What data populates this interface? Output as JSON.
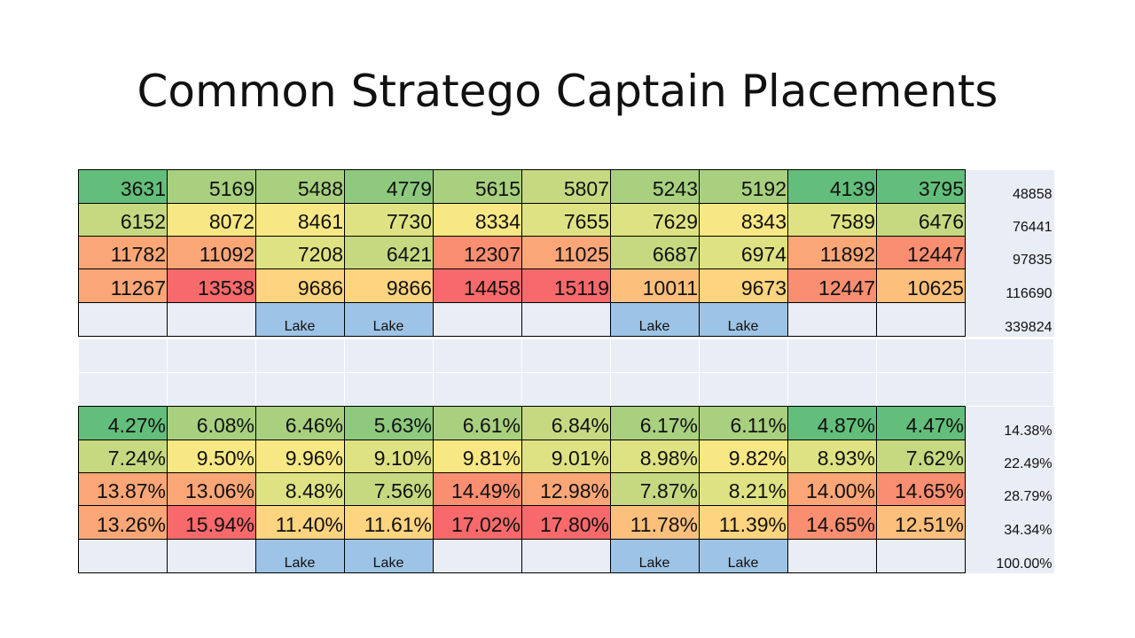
{
  "title": "Common Stratego Captain Placements",
  "lake_label": "Lake",
  "colors": {
    "c1": "#63be7b",
    "c2": "#8ec97e",
    "c3": "#a8d07f",
    "c4": "#c6d981",
    "c5": "#dee283",
    "c6": "#f7e885",
    "c7": "#fdd47f",
    "c8": "#fcc07c",
    "c9": "#fba677",
    "c10": "#f98e71",
    "c11": "#f8696b",
    "lake": "#9dc3e6",
    "empty": "#e9edf5"
  },
  "counts": {
    "rows": [
      [
        "3631",
        "5169",
        "5488",
        "4779",
        "5615",
        "5807",
        "5243",
        "5192",
        "4139",
        "3795"
      ],
      [
        "6152",
        "8072",
        "8461",
        "7730",
        "8334",
        "7655",
        "7629",
        "8343",
        "7589",
        "6476"
      ],
      [
        "11782",
        "11092",
        "7208",
        "6421",
        "12307",
        "11025",
        "6687",
        "6974",
        "11892",
        "12447"
      ],
      [
        "11267",
        "13538",
        "9686",
        "9866",
        "14458",
        "15119",
        "10011",
        "9673",
        "12447",
        "10625"
      ]
    ],
    "row_totals": [
      "48858",
      "76441",
      "97835",
      "116690",
      "339824"
    ]
  },
  "percentages": {
    "rows": [
      [
        "4.27%",
        "6.08%",
        "6.46%",
        "5.63%",
        "6.61%",
        "6.84%",
        "6.17%",
        "6.11%",
        "4.87%",
        "4.47%"
      ],
      [
        "7.24%",
        "9.50%",
        "9.96%",
        "9.10%",
        "9.81%",
        "9.01%",
        "8.98%",
        "9.82%",
        "8.93%",
        "7.62%"
      ],
      [
        "13.87%",
        "13.06%",
        "8.48%",
        "7.56%",
        "14.49%",
        "12.98%",
        "7.87%",
        "8.21%",
        "14.00%",
        "14.65%"
      ],
      [
        "13.26%",
        "15.94%",
        "11.40%",
        "11.61%",
        "17.02%",
        "17.80%",
        "11.78%",
        "11.39%",
        "14.65%",
        "12.51%"
      ]
    ],
    "row_totals": [
      "14.38%",
      "22.49%",
      "28.79%",
      "34.34%",
      "100.00%"
    ]
  },
  "cell_colors": [
    [
      "c1",
      "c3",
      "c3",
      "c2",
      "c3",
      "c4",
      "c3",
      "c3",
      "c1",
      "c1"
    ],
    [
      "c4",
      "c6",
      "c6",
      "c5",
      "c6",
      "c5",
      "c5",
      "c6",
      "c5",
      "c4"
    ],
    [
      "c9",
      "c9",
      "c5",
      "c4",
      "c10",
      "c9",
      "c4",
      "c5",
      "c9",
      "c10"
    ],
    [
      "c9",
      "c11",
      "c7",
      "c7",
      "c11",
      "c11",
      "c8",
      "c7",
      "c10",
      "c8"
    ]
  ],
  "lake_columns": [
    2,
    3,
    6,
    7
  ]
}
